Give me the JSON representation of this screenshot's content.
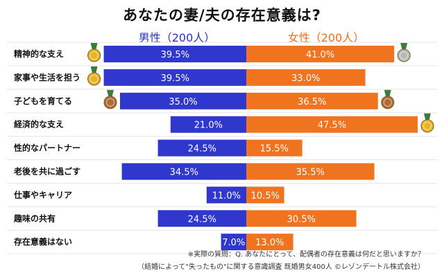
{
  "title": "あなたの妻/夫の存在意義は?",
  "legend": {
    "male": "男性（200人）",
    "female": "女性（200人）"
  },
  "colors": {
    "male": "#2f37cc",
    "female": "#f07420",
    "grid": "#e6e6e6"
  },
  "medals": {
    "gold": "#e8b425",
    "silver": "#b8b8b8",
    "bronze": "#b06a37"
  },
  "chart_data": {
    "type": "bar",
    "orientation": "horizontal-diverging",
    "categories": [
      "精神的な支え",
      "家事や生活を担う",
      "子どもを育てる",
      "経済的な支え",
      "性的なパートナー",
      "老後を共に過ごす",
      "仕事やキャリア",
      "趣味の共有",
      "存在意義はない"
    ],
    "series": [
      {
        "name": "男性（200人）",
        "values": [
          39.5,
          39.5,
          35.0,
          21.0,
          24.5,
          34.5,
          11.0,
          24.5,
          7.0
        ],
        "labels": [
          "39.5%",
          "39.5%",
          "35.0%",
          "21.0%",
          "24.5%",
          "34.5%",
          "11.0%",
          "24.5%",
          "7.0%"
        ]
      },
      {
        "name": "女性（200人）",
        "values": [
          41.0,
          33.0,
          36.5,
          47.5,
          15.5,
          35.5,
          10.5,
          30.5,
          13.0
        ],
        "labels": [
          "41.0%",
          "33.0%",
          "36.5%",
          "47.5%",
          "15.5%",
          "35.5%",
          "10.5%",
          "30.5%",
          "13.0%"
        ]
      }
    ],
    "medals_male": [
      "gold",
      "gold",
      "bronze",
      null,
      null,
      null,
      null,
      null,
      null
    ],
    "medals_female": [
      "silver",
      null,
      "bronze",
      "gold",
      null,
      null,
      null,
      null,
      null
    ],
    "xlim": [
      0,
      50
    ],
    "grid": true
  },
  "notes": {
    "line1": "※実際の質問：Q. あなたにとって、配偶者の存在意義は何だと思いますか？",
    "line2": "（結婚によって\"失ったもの\"に関する意識調査 既婚男女400人 ©レゾンデートル株式会社）"
  }
}
